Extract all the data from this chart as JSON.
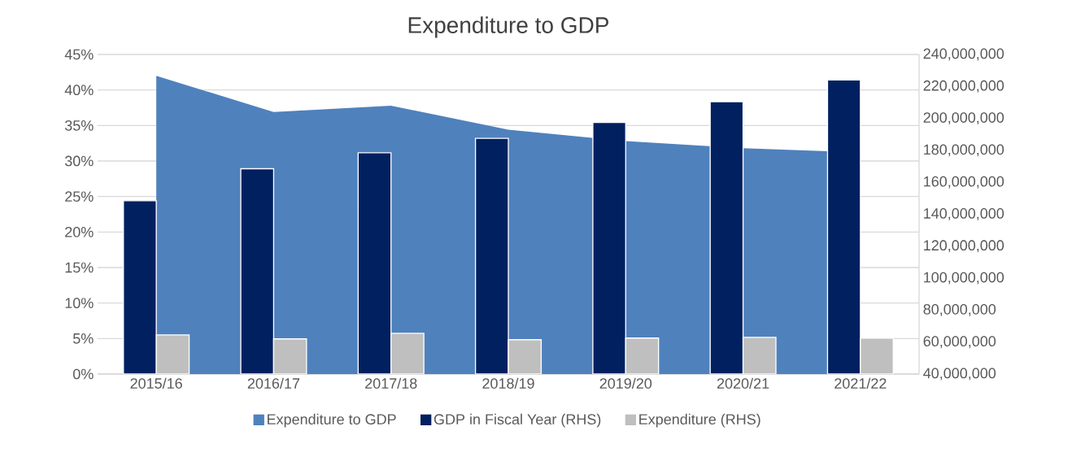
{
  "chart_data": {
    "type": "bar",
    "title": "Expenditure to GDP",
    "categories": [
      "2015/16",
      "2016/17",
      "2017/18",
      "2018/19",
      "2019/20",
      "2020/21",
      "2021/22"
    ],
    "series": [
      {
        "name": "Expenditure to GDP",
        "type": "area",
        "color": "#4f81bd",
        "values": [
          42,
          36.9,
          37.8,
          34.4,
          32.8,
          31.8,
          31.2
        ]
      },
      {
        "name": "GDP in Fiscal Year (RHS)",
        "type": "bar",
        "axis": "y2",
        "color": "#002060",
        "values": [
          148500000,
          168500000,
          178500000,
          187500000,
          197500000,
          210500000,
          224000000
        ]
      },
      {
        "name": "Expenditure (RHS)",
        "type": "bar",
        "axis": "y2",
        "color": "#bfbfbf",
        "values": [
          64500000,
          62000000,
          65500000,
          61500000,
          62500000,
          63000000,
          62500000
        ]
      }
    ],
    "ylim": [
      0,
      45
    ],
    "yticks": [
      {
        "value": 0,
        "label": "0%"
      },
      {
        "value": 5,
        "label": "5%"
      },
      {
        "value": 10,
        "label": "10%"
      },
      {
        "value": 15,
        "label": "15%"
      },
      {
        "value": 20,
        "label": "20%"
      },
      {
        "value": 25,
        "label": "25%"
      },
      {
        "value": 30,
        "label": "30%"
      },
      {
        "value": 35,
        "label": "35%"
      },
      {
        "value": 40,
        "label": "40%"
      },
      {
        "value": 45,
        "label": "45%"
      }
    ],
    "y2lim": [
      40000000,
      240000000
    ],
    "y2ticks": [
      {
        "value": 40000000,
        "label": "40,000,000"
      },
      {
        "value": 60000000,
        "label": "60,000,000"
      },
      {
        "value": 80000000,
        "label": "80,000,000"
      },
      {
        "value": 100000000,
        "label": "100,000,000"
      },
      {
        "value": 120000000,
        "label": "120,000,000"
      },
      {
        "value": 140000000,
        "label": "140,000,000"
      },
      {
        "value": 160000000,
        "label": "160,000,000"
      },
      {
        "value": 180000000,
        "label": "180,000,000"
      },
      {
        "value": 200000000,
        "label": "200,000,000"
      },
      {
        "value": 220000000,
        "label": "220,000,000"
      },
      {
        "value": 240000000,
        "label": "240,000,000"
      }
    ],
    "grid": "y",
    "legend": "bottom"
  }
}
